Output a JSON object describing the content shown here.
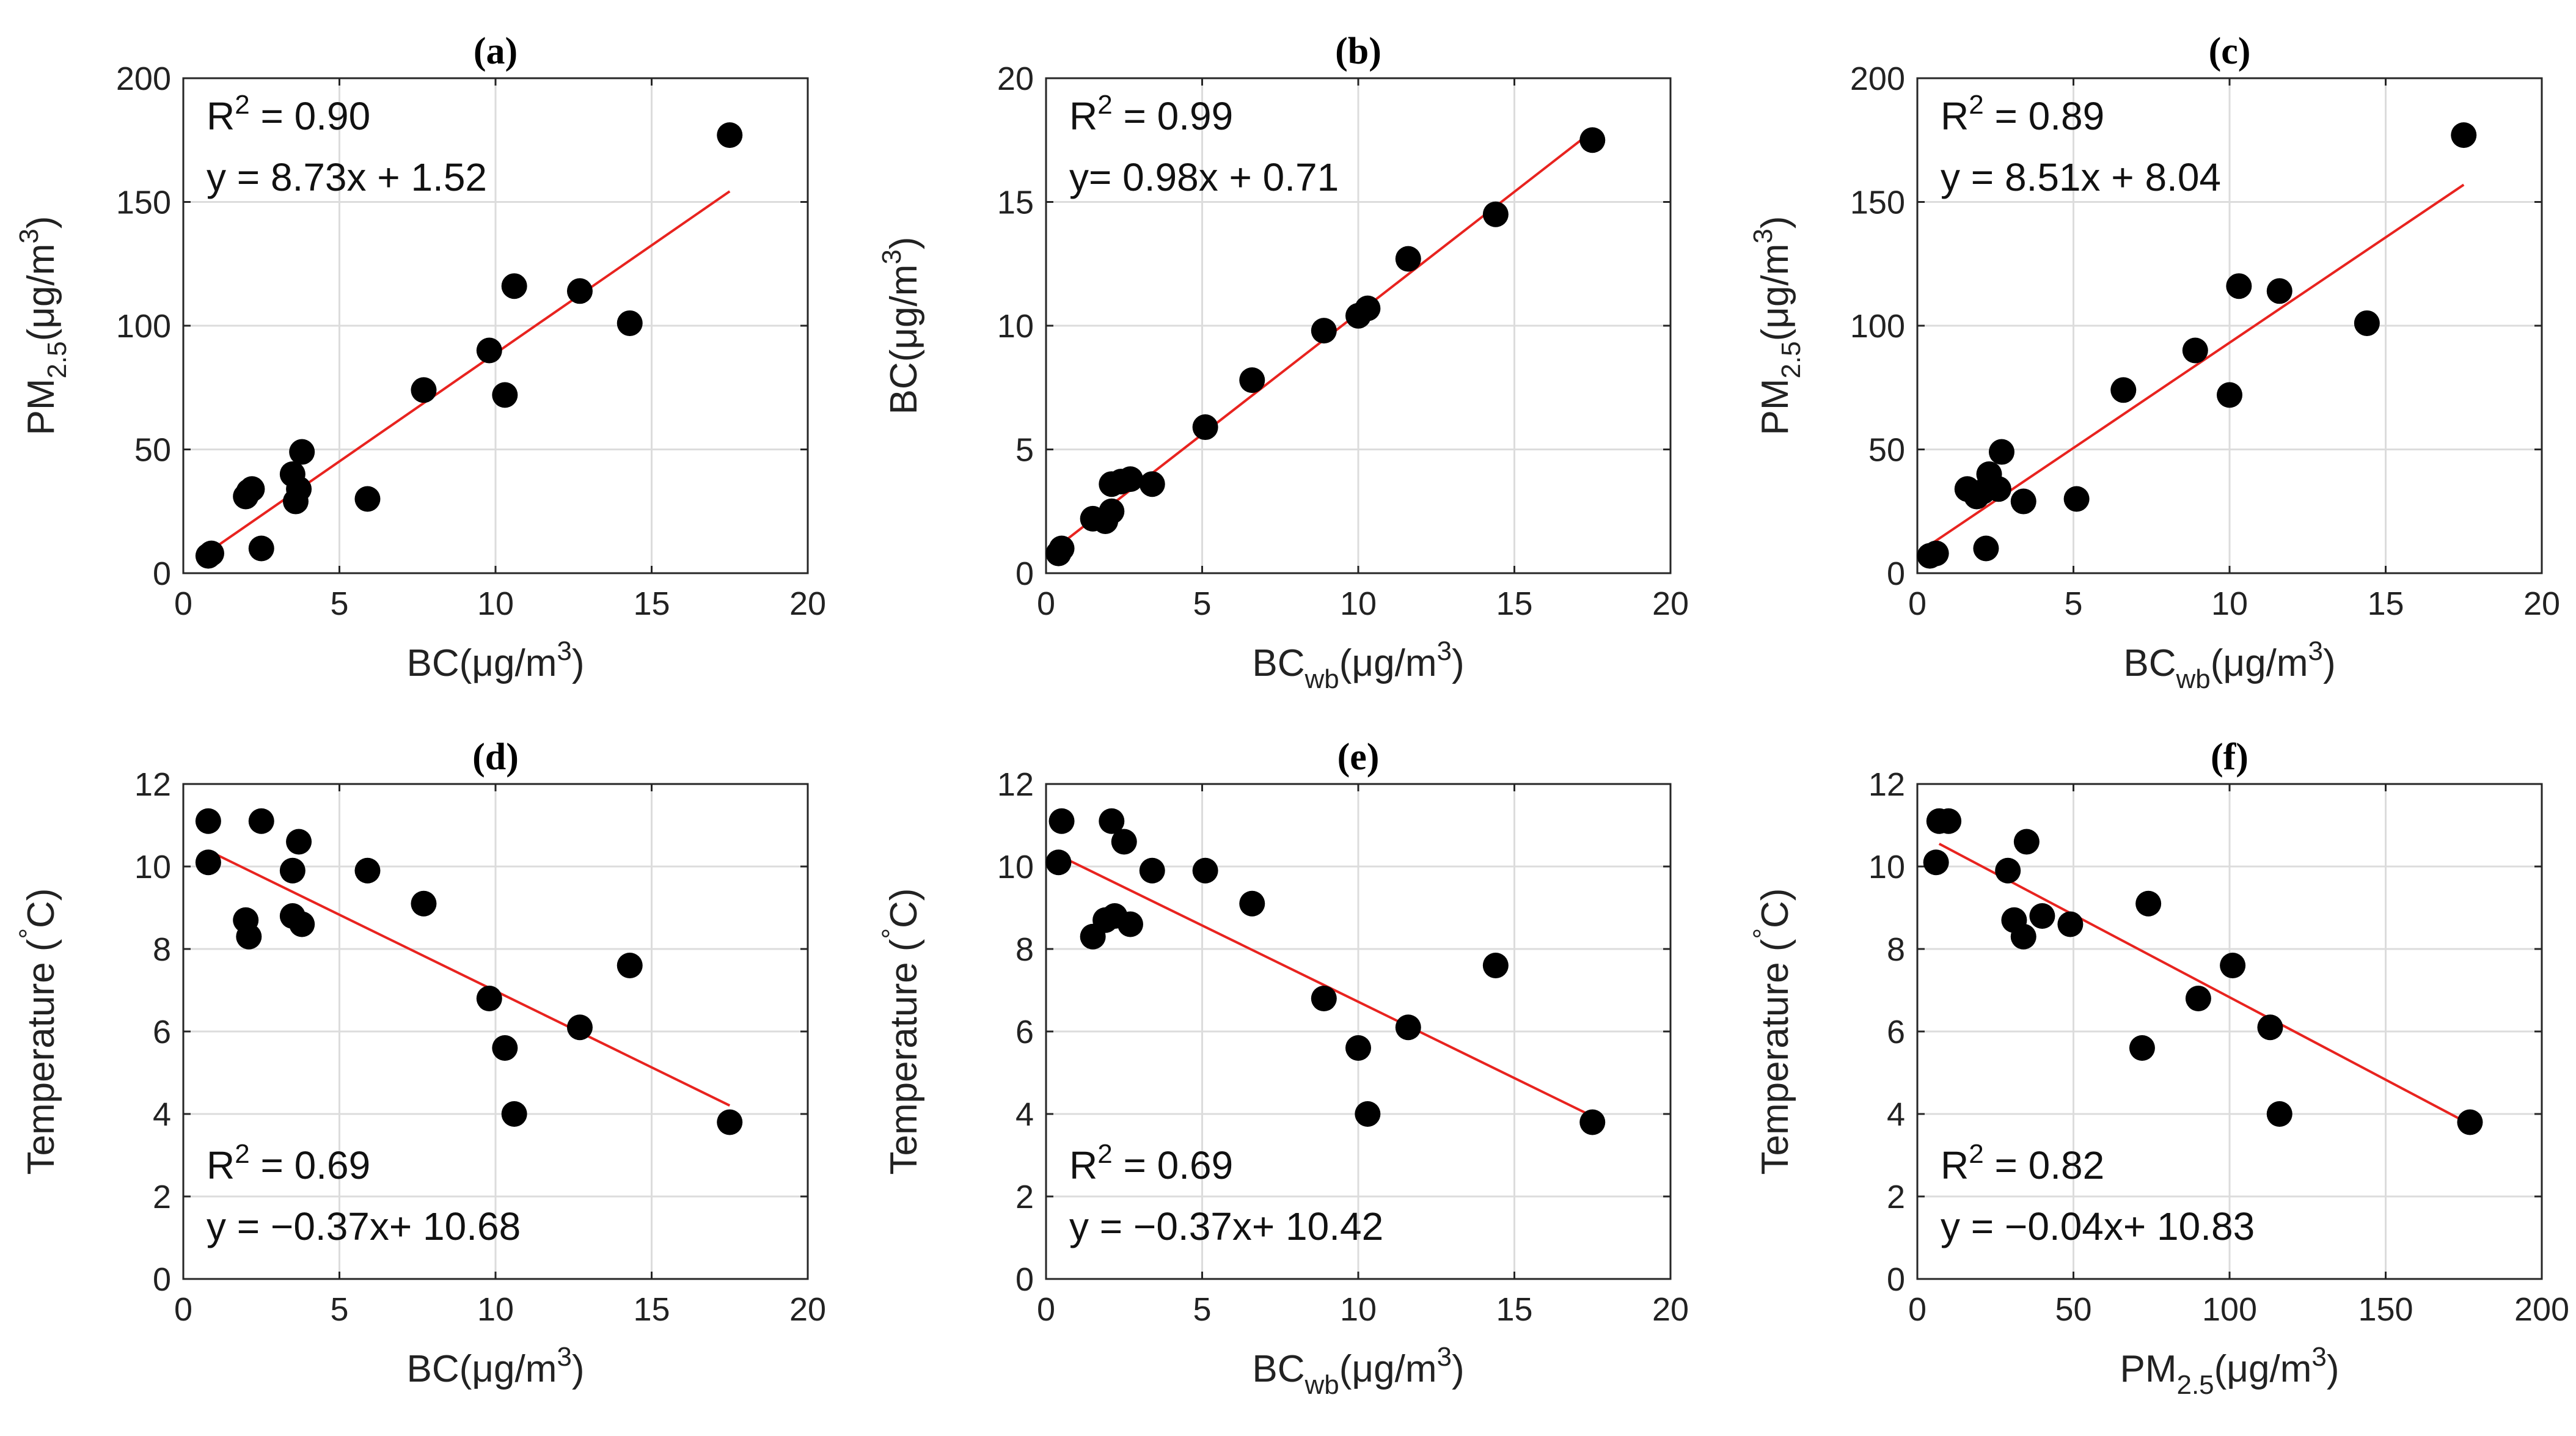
{
  "chart_data": [
    {
      "id": "a",
      "type": "scatter",
      "title": "(a)",
      "xlabel": {
        "main": "BC",
        "sub": "",
        "unit": "(μg/m",
        "sup": "3",
        "close": ")"
      },
      "ylabel": {
        "main": "PM",
        "sub": "2.5",
        "unit": "(μg/m",
        "sup": "3",
        "close": ")"
      },
      "xlim": [
        0,
        20
      ],
      "ylim": [
        0,
        200
      ],
      "xticks": [
        0,
        5,
        10,
        15,
        20
      ],
      "yticks": [
        0,
        50,
        100,
        150,
        200
      ],
      "r2_label": "R",
      "r2_sup": "2",
      "r2_value": " = 0.90",
      "equation": "y = 8.73x + 1.52",
      "annotation_position": "top-left",
      "fit": {
        "slope": 8.73,
        "intercept": 1.52,
        "x_range": [
          0.8,
          17.5
        ]
      },
      "points": [
        [
          0.8,
          7
        ],
        [
          0.9,
          8
        ],
        [
          2.0,
          31
        ],
        [
          2.1,
          33
        ],
        [
          2.2,
          34
        ],
        [
          2.5,
          10
        ],
        [
          3.5,
          40
        ],
        [
          3.6,
          29
        ],
        [
          3.7,
          34
        ],
        [
          3.8,
          49
        ],
        [
          5.9,
          30
        ],
        [
          7.7,
          74
        ],
        [
          9.8,
          90
        ],
        [
          10.3,
          72
        ],
        [
          10.6,
          116
        ],
        [
          12.7,
          114
        ],
        [
          14.3,
          101
        ],
        [
          17.5,
          177
        ]
      ]
    },
    {
      "id": "b",
      "type": "scatter",
      "title": "(b)",
      "xlabel": {
        "main": "BC",
        "sub": "wb",
        "unit": "(μg/m",
        "sup": "3",
        "close": ")"
      },
      "ylabel": {
        "main": "BC",
        "sub": "",
        "unit": "(μg/m",
        "sup": "3",
        "close": ")"
      },
      "xlim": [
        0,
        20
      ],
      "ylim": [
        0,
        20
      ],
      "xticks": [
        0,
        5,
        10,
        15,
        20
      ],
      "yticks": [
        0,
        5,
        10,
        15,
        20
      ],
      "r2_label": "R",
      "r2_sup": "2",
      "r2_value": " = 0.99",
      "equation": "y= 0.98x + 0.71",
      "annotation_position": "top-left",
      "fit": {
        "slope": 0.98,
        "intercept": 0.71,
        "x_range": [
          0.4,
          17.5
        ]
      },
      "points": [
        [
          0.4,
          0.8
        ],
        [
          0.5,
          1.0
        ],
        [
          1.5,
          2.2
        ],
        [
          1.9,
          2.1
        ],
        [
          2.1,
          2.5
        ],
        [
          2.1,
          3.6
        ],
        [
          2.4,
          3.7
        ],
        [
          2.7,
          3.8
        ],
        [
          3.4,
          3.6
        ],
        [
          5.1,
          5.9
        ],
        [
          6.6,
          7.8
        ],
        [
          8.9,
          9.8
        ],
        [
          10.0,
          10.4
        ],
        [
          10.3,
          10.7
        ],
        [
          11.6,
          12.7
        ],
        [
          14.4,
          14.5
        ],
        [
          17.5,
          17.5
        ]
      ]
    },
    {
      "id": "c",
      "type": "scatter",
      "title": "(c)",
      "xlabel": {
        "main": "BC",
        "sub": "wb",
        "unit": "(μg/m",
        "sup": "3",
        "close": ")"
      },
      "ylabel": {
        "main": "PM",
        "sub": "2.5",
        "unit": "(μg/m",
        "sup": "3",
        "close": ")"
      },
      "xlim": [
        0,
        20
      ],
      "ylim": [
        0,
        200
      ],
      "xticks": [
        0,
        5,
        10,
        15,
        20
      ],
      "yticks": [
        0,
        50,
        100,
        150,
        200
      ],
      "r2_label": "R",
      "r2_sup": "2",
      "r2_value": " = 0.89",
      "equation": "y = 8.51x + 8.04",
      "annotation_position": "top-left",
      "fit": {
        "slope": 8.51,
        "intercept": 8.04,
        "x_range": [
          0.4,
          17.5
        ]
      },
      "points": [
        [
          0.4,
          7
        ],
        [
          0.6,
          8
        ],
        [
          1.6,
          34
        ],
        [
          1.9,
          31
        ],
        [
          2.1,
          33
        ],
        [
          2.2,
          10
        ],
        [
          2.3,
          40
        ],
        [
          2.6,
          34
        ],
        [
          2.7,
          49
        ],
        [
          3.4,
          29
        ],
        [
          5.1,
          30
        ],
        [
          6.6,
          74
        ],
        [
          8.9,
          90
        ],
        [
          10.0,
          72
        ],
        [
          10.3,
          116
        ],
        [
          11.6,
          114
        ],
        [
          14.4,
          101
        ],
        [
          17.5,
          177
        ]
      ]
    },
    {
      "id": "d",
      "type": "scatter",
      "title": "(d)",
      "xlabel": {
        "main": "BC",
        "sub": "",
        "unit": "(μg/m",
        "sup": "3",
        "close": ")"
      },
      "ylabel": {
        "main": "Temperature (",
        "sub": "",
        "unit": "",
        "sup": "°",
        "close": "C)"
      },
      "xlim": [
        0,
        20
      ],
      "ylim": [
        0,
        12
      ],
      "xticks": [
        0,
        5,
        10,
        15,
        20
      ],
      "yticks": [
        0,
        2,
        4,
        6,
        8,
        10,
        12
      ],
      "r2_label": "R",
      "r2_sup": "2",
      "r2_value": " = 0.69",
      "equation": "y = −0.37x+ 10.68",
      "annotation_position": "bottom-left",
      "fit": {
        "slope": -0.37,
        "intercept": 10.68,
        "x_range": [
          0.8,
          17.5
        ]
      },
      "points": [
        [
          0.8,
          11.1
        ],
        [
          0.8,
          10.1
        ],
        [
          2.0,
          8.7
        ],
        [
          2.1,
          8.3
        ],
        [
          2.5,
          11.1
        ],
        [
          3.5,
          9.9
        ],
        [
          3.5,
          8.8
        ],
        [
          3.7,
          10.6
        ],
        [
          3.8,
          8.6
        ],
        [
          5.9,
          9.9
        ],
        [
          7.7,
          9.1
        ],
        [
          9.8,
          6.8
        ],
        [
          10.3,
          5.6
        ],
        [
          10.6,
          4.0
        ],
        [
          12.7,
          6.1
        ],
        [
          14.3,
          7.6
        ],
        [
          17.5,
          3.8
        ]
      ]
    },
    {
      "id": "e",
      "type": "scatter",
      "title": "(e)",
      "xlabel": {
        "main": "BC",
        "sub": "wb",
        "unit": "(μg/m",
        "sup": "3",
        "close": ")"
      },
      "ylabel": {
        "main": "Temperature (",
        "sub": "",
        "unit": "",
        "sup": "°",
        "close": "C)"
      },
      "xlim": [
        0,
        20
      ],
      "ylim": [
        0,
        12
      ],
      "xticks": [
        0,
        5,
        10,
        15,
        20
      ],
      "yticks": [
        0,
        2,
        4,
        6,
        8,
        10,
        12
      ],
      "r2_label": "R",
      "r2_sup": "2",
      "r2_value": " = 0.69",
      "equation": "y = −0.37x+ 10.42",
      "annotation_position": "bottom-left",
      "fit": {
        "slope": -0.37,
        "intercept": 10.42,
        "x_range": [
          0.4,
          17.5
        ]
      },
      "points": [
        [
          0.4,
          10.1
        ],
        [
          0.5,
          11.1
        ],
        [
          1.5,
          8.3
        ],
        [
          1.9,
          8.7
        ],
        [
          2.1,
          11.1
        ],
        [
          2.2,
          8.8
        ],
        [
          2.5,
          10.6
        ],
        [
          2.7,
          8.6
        ],
        [
          3.4,
          9.9
        ],
        [
          5.1,
          9.9
        ],
        [
          6.6,
          9.1
        ],
        [
          8.9,
          6.8
        ],
        [
          10.0,
          5.6
        ],
        [
          10.3,
          4.0
        ],
        [
          11.6,
          6.1
        ],
        [
          14.4,
          7.6
        ],
        [
          17.5,
          3.8
        ]
      ]
    },
    {
      "id": "f",
      "type": "scatter",
      "title": "(f)",
      "xlabel": {
        "main": "PM",
        "sub": "2.5",
        "unit": "(μg/m",
        "sup": "3",
        "close": ")"
      },
      "ylabel": {
        "main": "Temperature (",
        "sub": "",
        "unit": "",
        "sup": "°",
        "close": "C)"
      },
      "xlim": [
        0,
        200
      ],
      "ylim": [
        0,
        12
      ],
      "xticks": [
        0,
        50,
        100,
        150,
        200
      ],
      "yticks": [
        0,
        2,
        4,
        6,
        8,
        10,
        12
      ],
      "r2_label": "R",
      "r2_sup": "2",
      "r2_value": " = 0.82",
      "equation": "y = −0.04x+ 10.83",
      "annotation_position": "bottom-left",
      "fit": {
        "slope": -0.04,
        "intercept": 10.83,
        "x_range": [
          7,
          176
        ]
      },
      "points": [
        [
          6,
          10.1
        ],
        [
          7,
          11.1
        ],
        [
          10,
          11.1
        ],
        [
          29,
          9.9
        ],
        [
          31,
          8.7
        ],
        [
          34,
          8.3
        ],
        [
          35,
          10.6
        ],
        [
          40,
          8.8
        ],
        [
          49,
          8.6
        ],
        [
          72,
          5.6
        ],
        [
          74,
          9.1
        ],
        [
          90,
          6.8
        ],
        [
          101,
          7.6
        ],
        [
          113,
          6.1
        ],
        [
          116,
          4.0
        ],
        [
          177,
          3.8
        ]
      ]
    }
  ],
  "style": {
    "marker_color": "#000000",
    "fit_color": "#e8231f",
    "grid_color": "#dcdcdc",
    "axis_color": "#262626"
  }
}
